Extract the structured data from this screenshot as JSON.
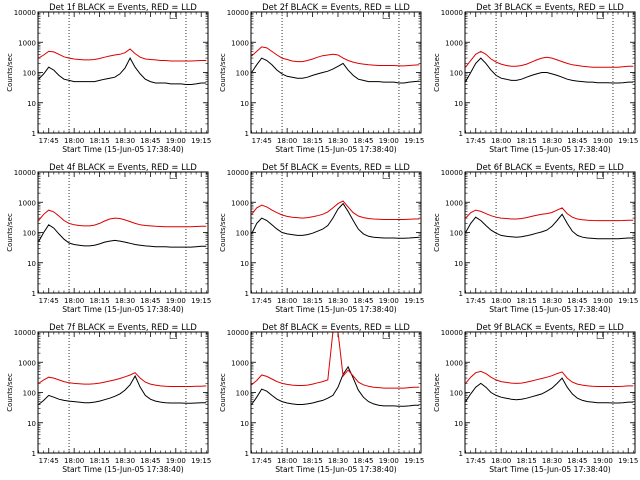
{
  "chart_data": {
    "type": "line",
    "xlabel": "Start Time (15-Jun-05 17:38:40)",
    "ylabel": "Counts/sec",
    "y_scale": "log",
    "ylim": [
      1,
      10000
    ],
    "xlim": [
      17.6444,
      19.3167
    ],
    "x_ticks": [
      17.75,
      18.0,
      18.25,
      18.5,
      18.75,
      19.0,
      19.25
    ],
    "x_tick_labels": [
      "17:45",
      "18:00",
      "18:15",
      "18:30",
      "18:45",
      "19:00",
      "19:15"
    ],
    "y_ticks": [
      1,
      10,
      100,
      1000,
      10000
    ],
    "y_tick_labels": [
      "1",
      "10",
      "100",
      "1000",
      "10000"
    ],
    "vlines": [
      17.95,
      19.1
    ],
    "legend_marker": "□",
    "colors": {
      "events": "#000000",
      "lld": "#dd0000"
    },
    "x": [
      17.65,
      17.7,
      17.75,
      17.8,
      17.85,
      17.9,
      17.95,
      18.0,
      18.05,
      18.1,
      18.15,
      18.2,
      18.25,
      18.3,
      18.35,
      18.4,
      18.45,
      18.5,
      18.55,
      18.6,
      18.65,
      18.7,
      18.75,
      18.8,
      18.85,
      18.9,
      18.95,
      19.0,
      19.05,
      19.1,
      19.15,
      19.2,
      19.25,
      19.3
    ],
    "panels": [
      {
        "title": "Det 1f BLACK = Events, RED = LLD",
        "series": [
          {
            "name": "Events",
            "values": [
              60,
              90,
              150,
              120,
              80,
              60,
              55,
              50,
              50,
              50,
              50,
              50,
              55,
              60,
              65,
              70,
              90,
              140,
              300,
              150,
              90,
              60,
              50,
              45,
              45,
              45,
              42,
              42,
              42,
              40,
              40,
              42,
              45,
              45
            ]
          },
          {
            "name": "LLD",
            "values": [
              300,
              380,
              500,
              480,
              400,
              330,
              300,
              280,
              270,
              260,
              260,
              270,
              290,
              320,
              350,
              380,
              400,
              450,
              600,
              420,
              320,
              280,
              270,
              260,
              250,
              250,
              240,
              240,
              240,
              240,
              240,
              245,
              250,
              250
            ]
          }
        ]
      },
      {
        "title": "Det 2f BLACK = Events, RED = LLD",
        "series": [
          {
            "name": "Events",
            "values": [
              100,
              180,
              300,
              250,
              180,
              120,
              90,
              75,
              70,
              65,
              65,
              70,
              80,
              90,
              100,
              110,
              130,
              160,
              200,
              120,
              80,
              60,
              55,
              50,
              50,
              50,
              48,
              48,
              48,
              45,
              45,
              48,
              50,
              52
            ]
          },
          {
            "name": "LLD",
            "values": [
              350,
              500,
              700,
              650,
              500,
              380,
              300,
              270,
              240,
              230,
              230,
              250,
              280,
              320,
              360,
              380,
              400,
              380,
              300,
              250,
              220,
              200,
              190,
              180,
              175,
              170,
              170,
              170,
              170,
              165,
              165,
              170,
              175,
              180
            ]
          }
        ]
      },
      {
        "title": "Det 3f BLACK = Events, RED = LLD",
        "series": [
          {
            "name": "Events",
            "values": [
              50,
              100,
              200,
              300,
              200,
              120,
              80,
              65,
              60,
              55,
              55,
              60,
              70,
              80,
              90,
              100,
              100,
              90,
              80,
              70,
              60,
              55,
              52,
              50,
              48,
              48,
              46,
              46,
              46,
              45,
              45,
              46,
              48,
              48
            ]
          },
          {
            "name": "LLD",
            "values": [
              150,
              250,
              400,
              500,
              400,
              280,
              220,
              190,
              170,
              160,
              160,
              170,
              190,
              220,
              260,
              300,
              320,
              300,
              260,
              230,
              200,
              180,
              170,
              160,
              155,
              150,
              150,
              150,
              150,
              150,
              150,
              155,
              160,
              160
            ]
          }
        ]
      },
      {
        "title": "Det 4f BLACK = Events, RED = LLD",
        "series": [
          {
            "name": "Events",
            "values": [
              50,
              100,
              180,
              140,
              90,
              60,
              45,
              40,
              38,
              36,
              36,
              38,
              42,
              48,
              52,
              55,
              52,
              48,
              44,
              40,
              38,
              36,
              35,
              34,
              34,
              34,
              33,
              33,
              33,
              33,
              33,
              34,
              35,
              35
            ]
          },
          {
            "name": "LLD",
            "values": [
              250,
              400,
              550,
              480,
              350,
              250,
              200,
              180,
              170,
              165,
              165,
              175,
              200,
              240,
              280,
              300,
              290,
              260,
              230,
              200,
              180,
              170,
              165,
              160,
              158,
              155,
              155,
              155,
              155,
              155,
              155,
              158,
              160,
              160
            ]
          }
        ]
      },
      {
        "title": "Det 5f BLACK = Events, RED = LLD",
        "series": [
          {
            "name": "Events",
            "values": [
              90,
              200,
              300,
              250,
              180,
              130,
              100,
              90,
              85,
              80,
              80,
              85,
              95,
              110,
              130,
              170,
              300,
              600,
              900,
              500,
              250,
              130,
              90,
              75,
              70,
              68,
              66,
              66,
              66,
              65,
              65,
              66,
              68,
              70
            ]
          },
          {
            "name": "LLD",
            "values": [
              400,
              650,
              800,
              700,
              550,
              450,
              380,
              340,
              320,
              310,
              300,
              310,
              330,
              360,
              400,
              480,
              650,
              900,
              1100,
              700,
              450,
              350,
              310,
              290,
              280,
              275,
              270,
              270,
              270,
              270,
              270,
              275,
              280,
              280
            ]
          }
        ]
      },
      {
        "title": "Det 6f BLACK = Events, RED = LLD",
        "series": [
          {
            "name": "Events",
            "values": [
              100,
              200,
              320,
              250,
              170,
              120,
              95,
              80,
              75,
              72,
              70,
              72,
              78,
              85,
              95,
              105,
              120,
              160,
              250,
              400,
              200,
              110,
              80,
              70,
              66,
              64,
              62,
              62,
              62,
              62,
              62,
              64,
              66,
              66
            ]
          },
          {
            "name": "LLD",
            "values": [
              300,
              450,
              550,
              500,
              420,
              360,
              320,
              300,
              290,
              280,
              280,
              290,
              310,
              340,
              370,
              400,
              420,
              460,
              550,
              650,
              420,
              320,
              280,
              265,
              255,
              250,
              248,
              248,
              248,
              248,
              248,
              250,
              255,
              255
            ]
          }
        ]
      },
      {
        "title": "Det 7f BLACK = Events, RED = LLD",
        "series": [
          {
            "name": "Events",
            "values": [
              40,
              55,
              80,
              70,
              60,
              55,
              52,
              50,
              48,
              46,
              46,
              48,
              52,
              58,
              65,
              75,
              90,
              120,
              180,
              350,
              150,
              80,
              60,
              52,
              48,
              46,
              45,
              45,
              45,
              44,
              44,
              45,
              46,
              46
            ]
          },
          {
            "name": "LLD",
            "values": [
              200,
              260,
              320,
              300,
              260,
              230,
              210,
              200,
              195,
              190,
              190,
              195,
              205,
              220,
              240,
              260,
              290,
              330,
              380,
              450,
              300,
              220,
              190,
              175,
              165,
              160,
              158,
              158,
              158,
              158,
              158,
              160,
              162,
              165
            ]
          }
        ]
      },
      {
        "title": "Det 8f BLACK = Events, RED = LLD",
        "series": [
          {
            "name": "Events",
            "values": [
              40,
              70,
              130,
              110,
              80,
              60,
              50,
              45,
              42,
              40,
              40,
              42,
              45,
              50,
              55,
              65,
              80,
              150,
              400,
              700,
              300,
              120,
              70,
              50,
              42,
              38,
              36,
              36,
              36,
              35,
              35,
              36,
              38,
              38
            ]
          },
          {
            "name": "LLD",
            "values": [
              180,
              250,
              380,
              340,
              280,
              230,
              200,
              185,
              175,
              170,
              170,
              175,
              190,
              210,
              230,
              260,
              10000,
              10000,
              350,
              550,
              350,
              220,
              180,
              160,
              150,
              145,
              140,
              140,
              140,
              140,
              140,
              145,
              150,
              150
            ]
          }
        ]
      },
      {
        "title": "Det 9f BLACK = Events, RED = LLD",
        "series": [
          {
            "name": "Events",
            "values": [
              50,
              90,
              150,
              200,
              150,
              100,
              80,
              70,
              65,
              60,
              58,
              60,
              65,
              72,
              80,
              90,
              110,
              140,
              200,
              300,
              150,
              90,
              65,
              55,
              50,
              48,
              46,
              46,
              46,
              45,
              45,
              46,
              48,
              48
            ]
          },
          {
            "name": "LLD",
            "values": [
              200,
              320,
              450,
              500,
              420,
              320,
              260,
              230,
              215,
              205,
              200,
              205,
              220,
              240,
              265,
              290,
              320,
              360,
              420,
              480,
              300,
              220,
              190,
              175,
              165,
              160,
              158,
              158,
              158,
              158,
              158,
              160,
              165,
              165
            ]
          }
        ]
      }
    ]
  }
}
